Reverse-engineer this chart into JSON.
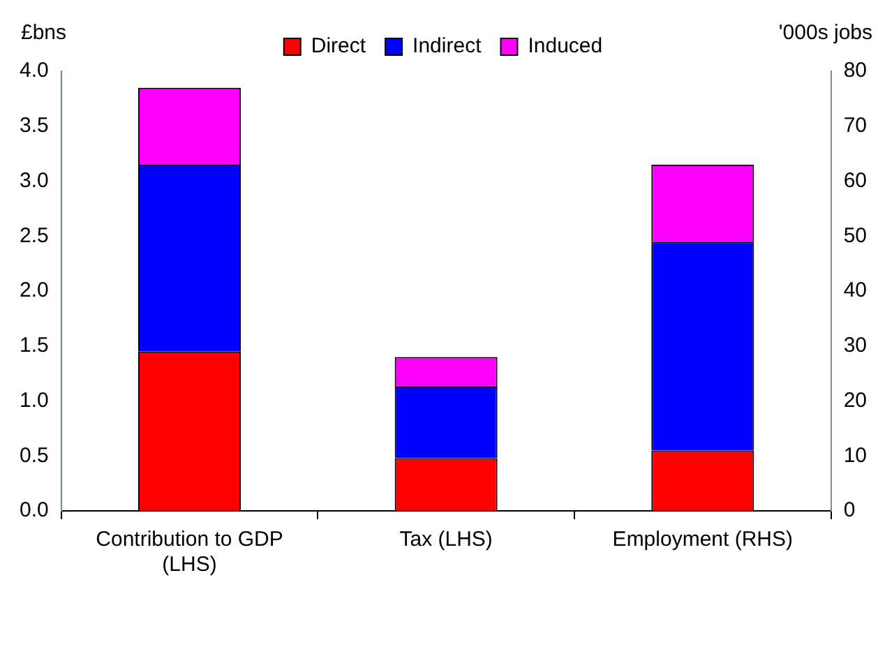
{
  "chart_data": {
    "type": "bar",
    "stacked": true,
    "categories": [
      "Contribution to GDP (LHS)",
      "Tax (LHS)",
      "Employment (RHS)"
    ],
    "ylabel": "£bns",
    "y2label": "'000s jobs",
    "series": [
      {
        "name": "Direct",
        "color": "#ff0000",
        "values": [
          1.45,
          0.48,
          null
        ]
      },
      {
        "name": "Indirect",
        "color": "#0000ff",
        "values": [
          1.7,
          0.65,
          null
        ]
      },
      {
        "name": "Induced",
        "color": "#ff00ff",
        "values": [
          0.7,
          0.27,
          null
        ]
      },
      {
        "color": "#ff0000",
        "axis": "y2",
        "values": [
          null,
          null,
          11
        ]
      },
      {
        "color": "#0000ff",
        "axis": "y2",
        "values": [
          null,
          null,
          38
        ]
      },
      {
        "color": "#ff00ff",
        "axis": "y2",
        "values": [
          null,
          null,
          14
        ]
      }
    ],
    "ylim": [
      0,
      4
    ],
    "yticks": [
      {
        "value": 0,
        "label": "0.0"
      },
      {
        "value": 0.5,
        "label": "0.5"
      },
      {
        "value": 1,
        "label": "1.0"
      },
      {
        "value": 1.5,
        "label": "1.5"
      },
      {
        "value": 2,
        "label": "2.0"
      },
      {
        "value": 2.5,
        "label": "2.5"
      },
      {
        "value": 3,
        "label": "3.0"
      },
      {
        "value": 3.5,
        "label": "3.5"
      },
      {
        "value": 4,
        "label": "4.0"
      }
    ],
    "y2lim": [
      0,
      80
    ],
    "y2ticks": [
      0,
      10,
      20,
      30,
      40,
      50,
      60,
      70,
      80
    ],
    "grid": false,
    "legend": "top"
  }
}
